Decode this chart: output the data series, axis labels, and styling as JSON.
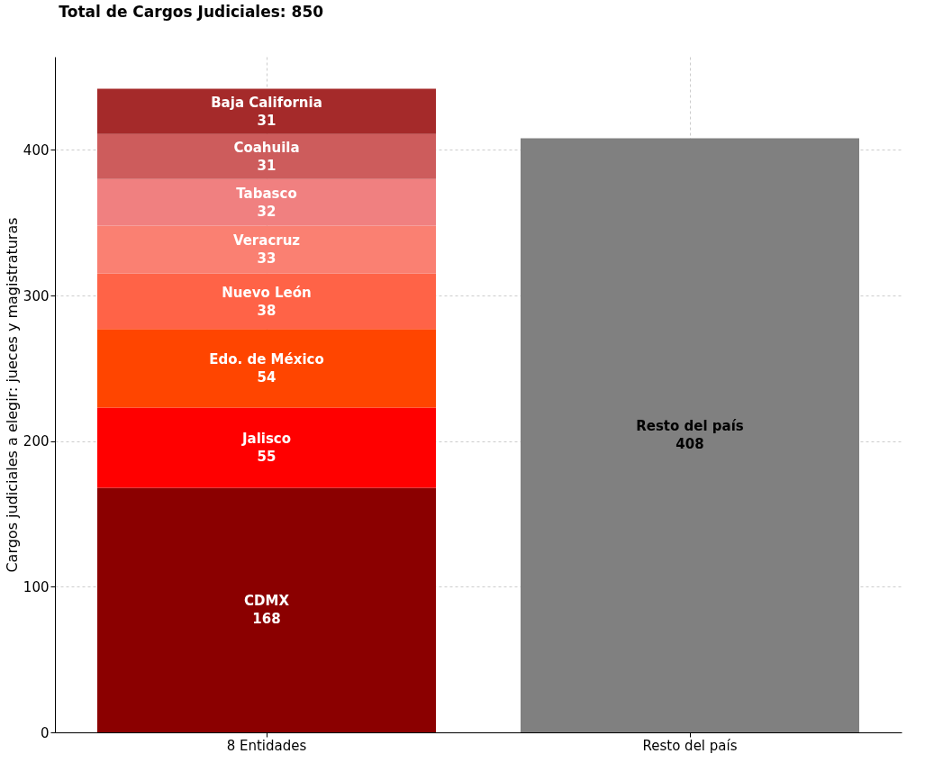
{
  "chart_data": {
    "type": "bar",
    "stacked": true,
    "title": "Total de Cargos Judiciales: 850",
    "ylabel": "Cargos judiciales a elegir: jueces y magistraturas",
    "categories": [
      "8 Entidades",
      "Resto del país"
    ],
    "series": [
      {
        "name": "CDMX",
        "color": "#8b0000",
        "values": [
          168,
          null
        ]
      },
      {
        "name": "Jalisco",
        "color": "#ff0000",
        "values": [
          55,
          null
        ]
      },
      {
        "name": "Edo. de México",
        "color": "#ff4500",
        "values": [
          54,
          null
        ]
      },
      {
        "name": "Nuevo León",
        "color": "#ff6347",
        "values": [
          38,
          null
        ]
      },
      {
        "name": "Veracruz",
        "color": "#fa8072",
        "values": [
          33,
          null
        ]
      },
      {
        "name": "Tabasco",
        "color": "#f08080",
        "values": [
          32,
          null
        ]
      },
      {
        "name": "Coahuila",
        "color": "#cd5c5c",
        "values": [
          31,
          null
        ]
      },
      {
        "name": "Baja California",
        "color": "#a52a2a",
        "values": [
          31,
          null
        ]
      },
      {
        "name": "Resto del país",
        "color": "#808080",
        "values": [
          null,
          408
        ]
      }
    ],
    "ylim": [
      0,
      464
    ],
    "yticks": [
      0,
      100,
      200,
      300,
      400
    ],
    "grid": true,
    "data_labels": true
  }
}
